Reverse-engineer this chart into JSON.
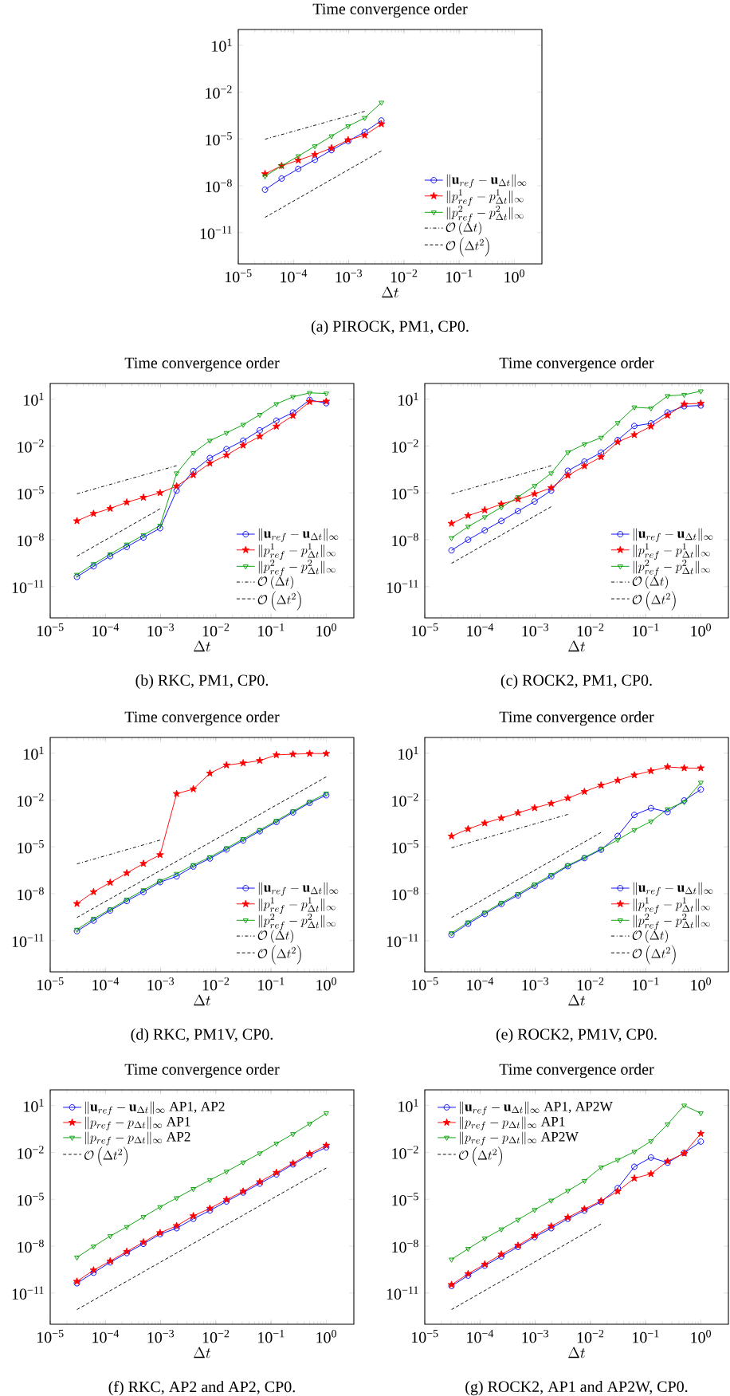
{
  "chart_data": [
    {
      "type": "line",
      "title": "Time convergence order",
      "xlabel": "\\Delta t",
      "log": "xy",
      "legend": "bottom right",
      "xlim": [
        1e-05,
        3.16
      ],
      "ylim": [
        1e-13,
        100
      ],
      "xticks": [
        {
          "value": 1e-05,
          "label": "10$^{−5}$"
        },
        {
          "value": 0.0001,
          "label": "10$^{−4}$"
        },
        {
          "value": 0.001,
          "label": "10$^{−3}$"
        },
        {
          "value": 0.01,
          "label": "10$^{−2}$"
        },
        {
          "value": 0.1,
          "label": "10$^{−1}$"
        },
        {
          "value": 1,
          "label": "10$^{0}$"
        }
      ],
      "yticks": [
        {
          "value": 1e-11,
          "label": "10$^{−11}$"
        },
        {
          "value": 1e-08,
          "label": "10$^{−8}$"
        },
        {
          "value": 1e-05,
          "label": "10$^{−5}$"
        },
        {
          "value": 0.01,
          "label": "10$^{−2}$"
        },
        {
          "value": 10,
          "label": "10$^{1}$"
        }
      ],
      "x": [
        3.05e-05,
        6.1e-05,
        0.000122,
        0.000244,
        0.000488,
        0.000977,
        0.00195,
        0.00391
      ],
      "series": [
        {
          "name": "\\|\\mathbf{u}_{ref}-\\mathbf{u}_{\\Delta t}\\|_\\infty",
          "color": "#0000ff",
          "marker": "circle",
          "line_style": "solid",
          "values": [
            5.6e-09,
            2.9e-08,
            1.2e-07,
            4.6e-07,
            1.9e-06,
            7.2e-06,
            2.8e-05,
            0.00015
          ]
        },
        {
          "name": "\\|p^1_{ref}-p^1_{\\Delta t}\\|_\\infty",
          "color": "#ff0000",
          "marker": "star",
          "line_style": "solid",
          "values": [
            5.8e-08,
            1.9e-07,
            4.3e-07,
            1e-06,
            2.6e-06,
            8.5e-06,
            1.7e-05,
            8.9e-05
          ]
        },
        {
          "name": "\\|p^2_{ref}-p^2_{\\Delta t}\\|_\\infty",
          "color": "#00a000",
          "marker": "triangle",
          "line_style": "solid",
          "values": [
            4.1e-08,
            1.9e-07,
            7.9e-07,
            3.4e-06,
            1.5e-05,
            6.5e-05,
            0.00022,
            0.0021
          ]
        },
        {
          "name": "\\mathcal{O}\\left(\\Delta t\\right)",
          "color": "#000000",
          "marker": "none",
          "line_style": "dashdot",
          "x": [
            3.05e-05,
            0.00195
          ],
          "values": [
            9.5e-06,
            0.00058
          ]
        },
        {
          "name": "\\mathcal{O}\\left(\\Delta t^2\\right)",
          "color": "#000000",
          "marker": "none",
          "line_style": "dashed",
          "x": [
            3.05e-05,
            0.00391
          ],
          "values": [
            9.5e-11,
            1.7e-06
          ]
        }
      ],
      "annotations": [
        "(a) PIROCK, PM1, CP0."
      ]
    },
    {
      "type": "line",
      "title": "Time convergence order",
      "xlabel": "\\Delta t",
      "log": "xy",
      "legend": "bottom right",
      "xlim": [
        1e-05,
        3.16
      ],
      "ylim": [
        1e-13,
        100
      ],
      "xticks": [
        {
          "value": 1e-05,
          "label": "10$^{−5}$"
        },
        {
          "value": 0.0001,
          "label": "10$^{−4}$"
        },
        {
          "value": 0.001,
          "label": "10$^{−3}$"
        },
        {
          "value": 0.01,
          "label": "10$^{−2}$"
        },
        {
          "value": 0.1,
          "label": "10$^{−1}$"
        },
        {
          "value": 1,
          "label": "10$^{0}$"
        }
      ],
      "yticks": [
        {
          "value": 1e-11,
          "label": "10$^{−11}$"
        },
        {
          "value": 1e-08,
          "label": "10$^{−8}$"
        },
        {
          "value": 1e-05,
          "label": "10$^{−5}$"
        },
        {
          "value": 0.01,
          "label": "10$^{−2}$"
        },
        {
          "value": 10,
          "label": "10$^{1}$"
        }
      ],
      "x": [
        3.05e-05,
        6.1e-05,
        0.000122,
        0.000244,
        0.000488,
        0.000977,
        0.00195,
        0.00391,
        0.00781,
        0.0156,
        0.0313,
        0.0625,
        0.125,
        0.25,
        0.5,
        1
      ],
      "series": [
        {
          "name": "\\|\\mathbf{u}_{ref}-\\mathbf{u}_{\\Delta t}\\|_\\infty",
          "color": "#0000ff",
          "marker": "circle",
          "line_style": "solid",
          "values": [
            4.2e-11,
            2e-10,
            8.9e-10,
            3.5e-09,
            1.4e-08,
            5.5e-08,
            1.4e-05,
            0.00025,
            0.0017,
            0.0063,
            0.022,
            0.1,
            0.42,
            1.4,
            8.9,
            5.5
          ]
        },
        {
          "name": "\\|p^1_{ref}-p^1_{\\Delta t}\\|_\\infty",
          "color": "#ff0000",
          "marker": "star",
          "line_style": "solid",
          "values": [
            1.6e-07,
            4.7e-07,
            1e-06,
            2.5e-06,
            5.1e-06,
            1e-05,
            2.7e-05,
            0.00014,
            0.00078,
            0.0026,
            0.011,
            0.041,
            0.18,
            0.87,
            6.8,
            7.2
          ]
        },
        {
          "name": "\\|p^2_{ref}-p^2_{\\Delta t}\\|_\\infty",
          "color": "#00a000",
          "marker": "triangle",
          "line_style": "solid",
          "values": [
            5.8e-11,
            2.8e-10,
            1.2e-09,
            5e-09,
            2e-08,
            8.1e-08,
            0.00018,
            0.0036,
            0.022,
            0.069,
            0.23,
            1,
            4.9,
            14,
            25,
            23
          ]
        },
        {
          "name": "\\mathcal{O}\\left(\\Delta t\\right)",
          "color": "#000000",
          "marker": "none",
          "line_style": "dashdot",
          "x": [
            3.05e-05,
            0.00195
          ],
          "values": [
            8.7e-06,
            0.00055
          ]
        },
        {
          "name": "\\mathcal{O}\\left(\\Delta t^2\\right)",
          "color": "#000000",
          "marker": "none",
          "line_style": "dashed",
          "x": [
            3.05e-05,
            0.000977
          ],
          "values": [
            8.9e-10,
            9.5e-07
          ]
        }
      ],
      "annotations": [
        "(b) RKC, PM1, CP0."
      ]
    },
    {
      "type": "line",
      "title": "Time convergence order",
      "xlabel": "\\Delta t",
      "log": "xy",
      "legend": "bottom right",
      "xlim": [
        1e-05,
        3.16
      ],
      "ylim": [
        1e-13,
        100
      ],
      "xticks": [
        {
          "value": 1e-05,
          "label": "10$^{−5}$"
        },
        {
          "value": 0.0001,
          "label": "10$^{−4}$"
        },
        {
          "value": 0.001,
          "label": "10$^{−3}$"
        },
        {
          "value": 0.01,
          "label": "10$^{−2}$"
        },
        {
          "value": 0.1,
          "label": "10$^{−1}$"
        },
        {
          "value": 1,
          "label": "10$^{0}$"
        }
      ],
      "yticks": [
        {
          "value": 1e-11,
          "label": "10$^{−11}$"
        },
        {
          "value": 1e-08,
          "label": "10$^{−8}$"
        },
        {
          "value": 1e-05,
          "label": "10$^{−5}$"
        },
        {
          "value": 0.01,
          "label": "10$^{−2}$"
        },
        {
          "value": 10,
          "label": "10$^{1}$"
        }
      ],
      "x": [
        3.05e-05,
        6.1e-05,
        0.000122,
        0.000244,
        0.000488,
        0.000977,
        0.00195,
        0.00391,
        0.00781,
        0.0156,
        0.0313,
        0.0625,
        0.125,
        0.25,
        0.5,
        1
      ],
      "series": [
        {
          "name": "\\|\\mathbf{u}_{ref}-\\mathbf{u}_{\\Delta t}\\|_\\infty",
          "color": "#0000ff",
          "marker": "circle",
          "line_style": "solid",
          "values": [
            2.1e-09,
            1e-08,
            4e-08,
            1.6e-07,
            6.8e-07,
            2.8e-06,
            1.4e-05,
            0.00026,
            0.001,
            0.0038,
            0.024,
            0.19,
            0.28,
            1.4,
            3.5,
            3.9
          ]
        },
        {
          "name": "\\|p^1_{ref}-p^1_{\\Delta t}\\|_\\infty",
          "color": "#ff0000",
          "marker": "star",
          "line_style": "solid",
          "values": [
            1.1e-07,
            3.5e-07,
            7.9e-07,
            1.9e-06,
            3.9e-06,
            8.7e-06,
            2.1e-05,
            0.00013,
            0.00052,
            0.002,
            0.018,
            0.052,
            0.18,
            0.91,
            4.8,
            5.4
          ]
        },
        {
          "name": "\\|p^2_{ref}-p^2_{\\Delta t}\\|_\\infty",
          "color": "#00a000",
          "marker": "triangle",
          "line_style": "solid",
          "values": [
            1.3e-08,
            6.9e-08,
            2.8e-07,
            1.2e-06,
            5.4e-06,
            2.8e-05,
            0.00018,
            0.0039,
            0.013,
            0.034,
            0.3,
            3,
            2.6,
            16,
            19,
            32
          ]
        },
        {
          "name": "\\mathcal{O}\\left(\\Delta t\\right)",
          "color": "#000000",
          "marker": "none",
          "line_style": "dashdot",
          "x": [
            3.05e-05,
            0.00195
          ],
          "values": [
            8.7e-06,
            0.00055
          ]
        },
        {
          "name": "\\mathcal{O}\\left(\\Delta t^2\\right)",
          "color": "#000000",
          "marker": "none",
          "line_style": "dashed",
          "x": [
            3.05e-05,
            0.00195
          ],
          "values": [
            3.1e-10,
            1.3e-06
          ]
        }
      ],
      "annotations": [
        "(c) ROCK2, PM1, CP0."
      ]
    },
    {
      "type": "line",
      "title": "Time convergence order",
      "xlabel": "\\Delta t",
      "log": "xy",
      "legend": "bottom right",
      "xlim": [
        1e-05,
        3.16
      ],
      "ylim": [
        1e-13,
        100
      ],
      "xticks": [
        {
          "value": 1e-05,
          "label": "10$^{−5}$"
        },
        {
          "value": 0.0001,
          "label": "10$^{−4}$"
        },
        {
          "value": 0.001,
          "label": "10$^{−3}$"
        },
        {
          "value": 0.01,
          "label": "10$^{−2}$"
        },
        {
          "value": 0.1,
          "label": "10$^{−1}$"
        },
        {
          "value": 1,
          "label": "10$^{0}$"
        }
      ],
      "yticks": [
        {
          "value": 1e-11,
          "label": "10$^{−11}$"
        },
        {
          "value": 1e-08,
          "label": "10$^{−8}$"
        },
        {
          "value": 1e-05,
          "label": "10$^{−5}$"
        },
        {
          "value": 0.01,
          "label": "10$^{−2}$"
        },
        {
          "value": 10,
          "label": "10$^{1}$"
        }
      ],
      "x": [
        3.05e-05,
        6.1e-05,
        0.000122,
        0.000244,
        0.000488,
        0.000977,
        0.00195,
        0.00391,
        0.00781,
        0.0156,
        0.0313,
        0.0625,
        0.125,
        0.25,
        0.5,
        1
      ],
      "series": [
        {
          "name": "\\|\\mathbf{u}_{ref}-\\mathbf{u}_{\\Delta t}\\|_\\infty",
          "color": "#0000ff",
          "marker": "circle",
          "line_style": "solid",
          "values": [
            4e-11,
            1.9e-10,
            8.5e-10,
            3.4e-09,
            1.3e-08,
            5.5e-08,
            1.3e-07,
            5.5e-07,
            1.8e-06,
            6.8e-06,
            2.6e-05,
            0.0001,
            0.00039,
            0.0016,
            0.0065,
            0.02
          ]
        },
        {
          "name": "\\|p^1_{ref}-p^1_{\\Delta t}\\|_\\infty",
          "color": "#ff0000",
          "marker": "star",
          "line_style": "solid",
          "values": [
            2.3e-09,
            1.3e-08,
            5.2e-08,
            2.1e-07,
            8.5e-07,
            3.1e-06,
            0.025,
            0.05,
            0.51,
            1.7,
            2.3,
            3.3,
            7.6,
            8.5,
            9.3,
            9.3
          ]
        },
        {
          "name": "\\|p^2_{ref}-p^2_{\\Delta t}\\|_\\infty",
          "color": "#00a000",
          "marker": "triangle",
          "line_style": "solid",
          "values": [
            5.1e-11,
            2.5e-10,
            1e-09,
            4.3e-09,
            1.7e-08,
            6.6e-08,
            1.9e-07,
            6.9e-07,
            2.2e-06,
            8.3e-06,
            3.2e-05,
            0.00012,
            0.00047,
            0.0019,
            0.0076,
            0.026
          ]
        },
        {
          "name": "\\mathcal{O}\\left(\\Delta t\\right)",
          "color": "#000000",
          "marker": "none",
          "line_style": "dashdot",
          "x": [
            3.05e-05,
            0.000977
          ],
          "values": [
            8.1e-07,
            2.7e-05
          ]
        },
        {
          "name": "\\mathcal{O}\\left(\\Delta t^2\\right)",
          "color": "#000000",
          "marker": "none",
          "line_style": "dashed",
          "x": [
            3.05e-05,
            1
          ],
          "values": [
            3e-10,
            0.3
          ]
        }
      ],
      "annotations": [
        "(d) RKC, PM1V, CP0."
      ]
    },
    {
      "type": "line",
      "title": "Time convergence order",
      "xlabel": "\\Delta t",
      "log": "xy",
      "legend": "bottom right",
      "xlim": [
        1e-05,
        3.16
      ],
      "ylim": [
        1e-13,
        100
      ],
      "xticks": [
        {
          "value": 1e-05,
          "label": "10$^{−5}$"
        },
        {
          "value": 0.0001,
          "label": "10$^{−4}$"
        },
        {
          "value": 0.001,
          "label": "10$^{−3}$"
        },
        {
          "value": 0.01,
          "label": "10$^{−2}$"
        },
        {
          "value": 0.1,
          "label": "10$^{−1}$"
        },
        {
          "value": 1,
          "label": "10$^{0}$"
        }
      ],
      "yticks": [
        {
          "value": 1e-11,
          "label": "10$^{−11}$"
        },
        {
          "value": 1e-08,
          "label": "10$^{−8}$"
        },
        {
          "value": 1e-05,
          "label": "10$^{−5}$"
        },
        {
          "value": 0.01,
          "label": "10$^{−2}$"
        },
        {
          "value": 10,
          "label": "10$^{1}$"
        }
      ],
      "x": [
        3.05e-05,
        6.1e-05,
        0.000122,
        0.000244,
        0.000488,
        0.000977,
        0.00195,
        0.00391,
        0.00781,
        0.0156,
        0.0313,
        0.0625,
        0.125,
        0.25,
        0.5,
        1
      ],
      "series": [
        {
          "name": "\\|\\mathbf{u}_{ref}-\\mathbf{u}_{\\Delta t}\\|_\\infty",
          "color": "#0000ff",
          "marker": "circle",
          "line_style": "solid",
          "values": [
            2.4e-11,
            1.2e-10,
            5.1e-10,
            2.2e-09,
            7.9e-09,
            3.3e-08,
            1.3e-07,
            5.8e-07,
            1.9e-06,
            6.6e-06,
            5e-05,
            0.0011,
            0.003,
            0.0017,
            0.0093,
            0.047
          ]
        },
        {
          "name": "\\|p^1_{ref}-p^1_{\\Delta t}\\|_\\infty",
          "color": "#ff0000",
          "marker": "star",
          "line_style": "solid",
          "values": [
            4.8e-05,
            0.00014,
            0.00033,
            0.00069,
            0.0015,
            0.0031,
            0.006,
            0.013,
            0.034,
            0.087,
            0.18,
            0.39,
            0.72,
            1.3,
            1.1,
            1.1
          ]
        },
        {
          "name": "\\|p^2_{ref}-p^2_{\\Delta t}\\|_\\infty",
          "color": "#00a000",
          "marker": "triangle",
          "line_style": "solid",
          "values": [
            3e-11,
            1.5e-10,
            6.3e-10,
            2.6e-09,
            9.8e-09,
            4e-08,
            1.6e-07,
            6.5e-07,
            2.1e-06,
            7.4e-06,
            2.8e-05,
            0.00012,
            0.00042,
            0.0026,
            0.0074,
            0.13
          ]
        },
        {
          "name": "\\mathcal{O}\\left(\\Delta t\\right)",
          "color": "#000000",
          "marker": "none",
          "line_style": "dashdot",
          "x": [
            3.05e-05,
            0.00391
          ],
          "values": [
            8.7e-06,
            0.0012
          ]
        },
        {
          "name": "\\mathcal{O}\\left(\\Delta t^2\\right)",
          "color": "#000000",
          "marker": "none",
          "line_style": "dashed",
          "x": [
            3.05e-05,
            0.0156
          ],
          "values": [
            3e-10,
            8.3e-05
          ]
        }
      ],
      "annotations": [
        "(e) ROCK2, PM1V, CP0."
      ]
    },
    {
      "type": "line",
      "title": "Time convergence order",
      "xlabel": "\\Delta t",
      "log": "xy",
      "legend": "top left",
      "xlim": [
        1e-05,
        3.16
      ],
      "ylim": [
        1e-13,
        100
      ],
      "xticks": [
        {
          "value": 1e-05,
          "label": "10$^{−5}$"
        },
        {
          "value": 0.0001,
          "label": "10$^{−4}$"
        },
        {
          "value": 0.001,
          "label": "10$^{−3}$"
        },
        {
          "value": 0.01,
          "label": "10$^{−2}$"
        },
        {
          "value": 0.1,
          "label": "10$^{−1}$"
        },
        {
          "value": 1,
          "label": "10$^{0}$"
        }
      ],
      "yticks": [
        {
          "value": 1e-11,
          "label": "10$^{−11}$"
        },
        {
          "value": 1e-08,
          "label": "10$^{−8}$"
        },
        {
          "value": 1e-05,
          "label": "10$^{−5}$"
        },
        {
          "value": 0.01,
          "label": "10$^{−2}$"
        },
        {
          "value": 10,
          "label": "10$^{1}$"
        }
      ],
      "x": [
        3.05e-05,
        6.1e-05,
        0.000122,
        0.000244,
        0.000488,
        0.000977,
        0.00195,
        0.00391,
        0.00781,
        0.0156,
        0.0313,
        0.0625,
        0.125,
        0.25,
        0.5,
        1
      ],
      "series": [
        {
          "name": "\\|\\mathbf{u}_{ref}-\\mathbf{u}_{\\Delta t}\\|_\\infty\\mbox{ AP1, AP2}",
          "color": "#0000ff",
          "marker": "circle",
          "line_style": "solid",
          "values": [
            4.2e-11,
            2e-10,
            9.1e-10,
            3.6e-09,
            1.4e-08,
            5.8e-08,
            1.4e-07,
            5.6e-07,
            1.9e-06,
            7.2e-06,
            2.7e-05,
            0.0001,
            0.00039,
            0.0017,
            0.0066,
            0.021
          ]
        },
        {
          "name": "\\|p_{ref}-p_{\\Delta t}\\|_\\infty\\mbox{ AP1}",
          "color": "#ff0000",
          "marker": "star",
          "line_style": "solid",
          "values": [
            5.5e-11,
            2.9e-10,
            1.1e-09,
            4.5e-09,
            1.8e-08,
            7.1e-08,
            2e-07,
            8.5e-07,
            2.6e-06,
            9.5e-06,
            3.2e-05,
            0.00013,
            0.00051,
            0.002,
            0.0081,
            0.028
          ]
        },
        {
          "name": "\\|p_{ref}-p_{\\Delta t}\\|_\\infty\\mbox{ AP2}",
          "color": "#00a000",
          "marker": "triangle",
          "line_style": "solid",
          "values": [
            1.9e-09,
            9.5e-09,
            4.4e-08,
            1.7e-07,
            7.4e-07,
            3.2e-06,
            1.2e-05,
            4.6e-05,
            0.00017,
            0.00059,
            0.0023,
            0.0087,
            0.037,
            0.15,
            0.68,
            3.2
          ]
        },
        {
          "name": "\\mathcal{O}\\left(\\Delta t^2\\right)",
          "color": "#000000",
          "marker": "none",
          "line_style": "dashed",
          "x": [
            3.05e-05,
            1
          ],
          "values": [
            8.7e-13,
            0.001
          ]
        }
      ],
      "annotations": [
        "(f) RKC, AP2 and AP2, CP0."
      ]
    },
    {
      "type": "line",
      "title": "Time convergence order",
      "xlabel": "\\Delta t",
      "log": "xy",
      "legend": "top left",
      "xlim": [
        1e-05,
        3.16
      ],
      "ylim": [
        1e-13,
        100
      ],
      "xticks": [
        {
          "value": 1e-05,
          "label": "10$^{−5}$"
        },
        {
          "value": 0.0001,
          "label": "10$^{−4}$"
        },
        {
          "value": 0.001,
          "label": "10$^{−3}$"
        },
        {
          "value": 0.01,
          "label": "10$^{−2}$"
        },
        {
          "value": 0.1,
          "label": "10$^{−1}$"
        },
        {
          "value": 1,
          "label": "10$^{0}$"
        }
      ],
      "yticks": [
        {
          "value": 1e-11,
          "label": "10$^{−11}$"
        },
        {
          "value": 1e-08,
          "label": "10$^{−8}$"
        },
        {
          "value": 1e-05,
          "label": "10$^{−5}$"
        },
        {
          "value": 0.01,
          "label": "10$^{−2}$"
        },
        {
          "value": 10,
          "label": "10$^{1}$"
        }
      ],
      "x": [
        3.05e-05,
        6.1e-05,
        0.000122,
        0.000244,
        0.000488,
        0.000977,
        0.00195,
        0.00391,
        0.00781,
        0.0156,
        0.0313,
        0.0625,
        0.125,
        0.25,
        0.5,
        1
      ],
      "series": [
        {
          "name": "\\|\\mathbf{u}_{ref}-\\mathbf{u}_{\\Delta t}\\|_\\infty\\mbox{ AP1, AP2W}",
          "color": "#0000ff",
          "marker": "circle",
          "line_style": "solid",
          "values": [
            2.8e-11,
            1.3e-10,
            5.6e-10,
            2.2e-09,
            8.9e-09,
            3.8e-08,
            1.4e-07,
            5.6e-07,
            1.9e-06,
            6.8e-06,
            5.2e-05,
            0.0012,
            0.0047,
            0.0022,
            0.0093,
            0.049
          ]
        },
        {
          "name": "\\|p_{ref}-p_{\\Delta t}\\|_\\infty\\mbox{ AP1}",
          "color": "#ff0000",
          "marker": "star",
          "line_style": "solid",
          "values": [
            3.4e-11,
            1.7e-10,
            6.9e-10,
            3e-09,
            1.1e-08,
            4.7e-08,
            1.9e-07,
            6.9e-07,
            2.4e-06,
            7.8e-06,
            3.2e-05,
            0.00022,
            0.00042,
            0.0027,
            0.0087,
            0.16
          ]
        },
        {
          "name": "\\|p_{ref}-p_{\\Delta t}\\|_\\infty\\mbox{ AP2W}",
          "color": "#00a000",
          "marker": "triangle",
          "line_style": "solid",
          "values": [
            1.4e-09,
            6.8e-09,
            3.1e-08,
            1.2e-07,
            4.9e-07,
            2.1e-06,
            8.3e-06,
            3.5e-05,
            0.00015,
            0.0011,
            0.0033,
            0.011,
            0.052,
            0.63,
            10,
            3.2
          ]
        },
        {
          "name": "\\mathcal{O}\\left(\\Delta t^2\\right)",
          "color": "#000000",
          "marker": "none",
          "line_style": "dashed",
          "x": [
            3.05e-05,
            0.0156
          ],
          "values": [
            8.7e-13,
            2.6e-07
          ]
        }
      ],
      "annotations": [
        "(g) ROCK2, AP1 and AP2W, CP0."
      ]
    }
  ]
}
